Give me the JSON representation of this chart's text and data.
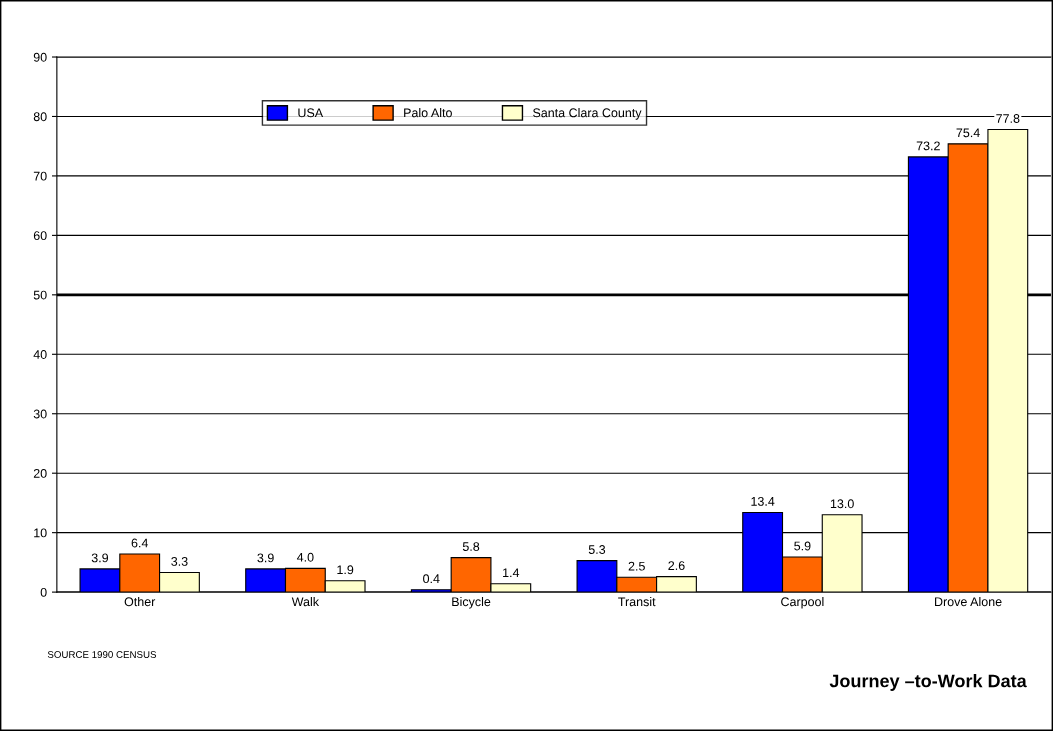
{
  "chart_data": {
    "type": "bar",
    "title": "Journey –to-Work Data",
    "categories": [
      "Other",
      "Walk",
      "Bicycle",
      "Transit",
      "Carpool",
      "Drove Alone"
    ],
    "series": [
      {
        "name": "USA",
        "color": "#0000ff",
        "values": [
          3.9,
          3.9,
          0.4,
          5.3,
          13.4,
          73.2
        ],
        "value_labels": [
          "3.9",
          "3.9",
          "0.4",
          "5.3",
          "13.4",
          "73.2"
        ]
      },
      {
        "name": "Palo Alto",
        "color": "#ff6600",
        "values": [
          6.4,
          4.0,
          5.8,
          2.5,
          5.9,
          75.4
        ],
        "value_labels": [
          "6.4",
          "4.0",
          "5.8",
          "2.5",
          "5.9",
          "75.4"
        ]
      },
      {
        "name": "Santa Clara County",
        "color": "#ffffcc",
        "values": [
          3.3,
          1.9,
          1.4,
          2.6,
          13.0,
          77.8
        ],
        "value_labels": [
          "3.3",
          "1.9",
          "1.4",
          "2.6",
          "13.0",
          "77.8"
        ]
      }
    ],
    "ylim": [
      0,
      90
    ],
    "yticks": [
      0,
      10,
      20,
      30,
      40,
      50,
      60,
      70,
      80,
      90
    ],
    "grid": "y",
    "legend": "top",
    "ref_lines": [
      {
        "axis": "y",
        "value": 50,
        "label": null,
        "color": "#000000"
      }
    ],
    "annotations": [
      "SOURCE 1990 CENSUS"
    ]
  }
}
